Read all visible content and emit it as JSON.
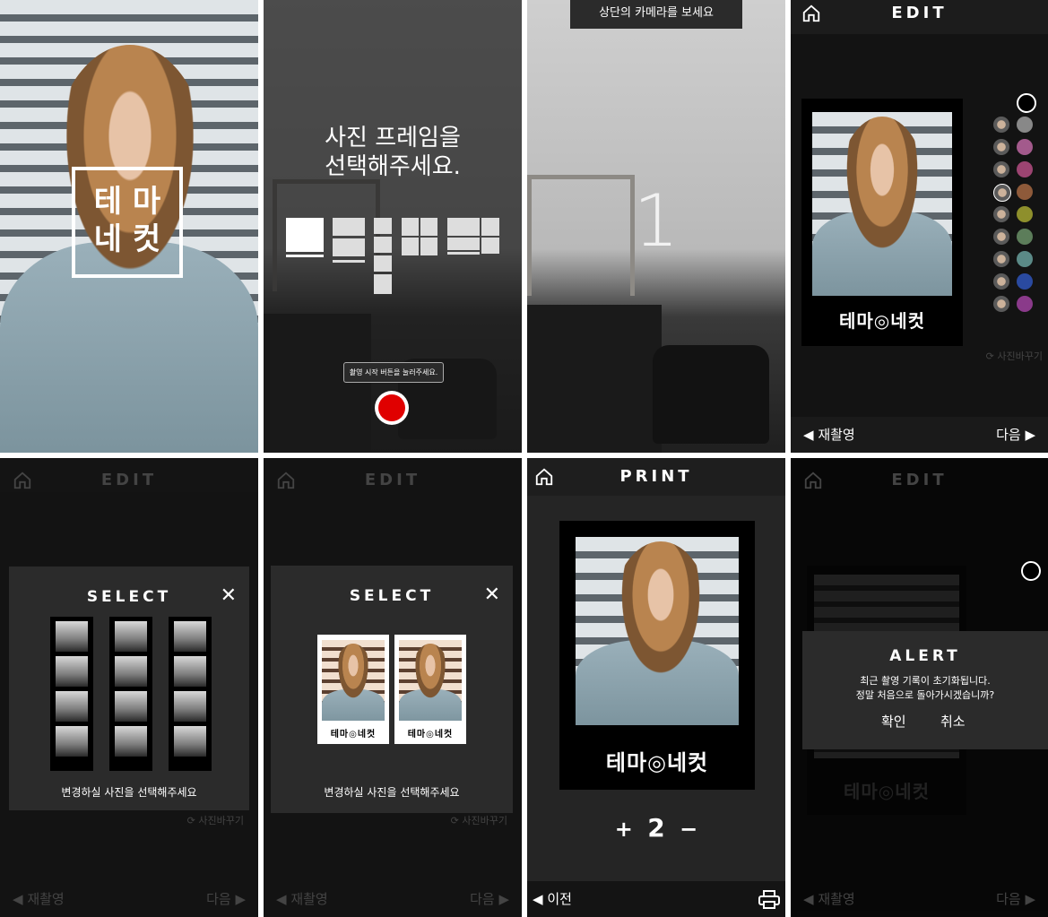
{
  "splash": {
    "logo_top": "테 마",
    "logo_bottom": "네 컷"
  },
  "frame_select": {
    "prompt_line1": "사진 프레임을",
    "prompt_line2": "선택해주세요.",
    "tooltip": "촬영 시작 버튼을 눌러주세요."
  },
  "countdown": {
    "banner": "상단의 카메라를 보세요",
    "number": "1"
  },
  "edit": {
    "title": "EDIT",
    "change_photo": "사진바꾸기",
    "retake": "재촬영",
    "next": "다음",
    "logo": "테마◎네컷",
    "colors": [
      "#000000",
      "#888888",
      "#a35a8c",
      "#9c4471",
      "#8e5a3a",
      "#8e8f2c",
      "#5c7d5a",
      "#5b8a87",
      "#2a4aa0",
      "#8a3a8a"
    ]
  },
  "select_strips": {
    "title": "SELECT",
    "close": "✕",
    "footer": "변경하실 사진을 선택해주세요"
  },
  "select_photos": {
    "title": "SELECT",
    "close": "✕",
    "footer": "변경하실 사진을 선택해주세요",
    "logo": "테마◎네컷"
  },
  "print": {
    "title": "PRINT",
    "plus": "+",
    "count": "2",
    "minus": "−",
    "prev": "이전",
    "logo": "테마◎네컷"
  },
  "alert": {
    "title": "ALERT",
    "line1": "최근 촬영 기록이 초기화됩니다.",
    "line2": "정말 처음으로 돌아가시겠습니까?",
    "confirm": "확인",
    "cancel": "취소"
  }
}
